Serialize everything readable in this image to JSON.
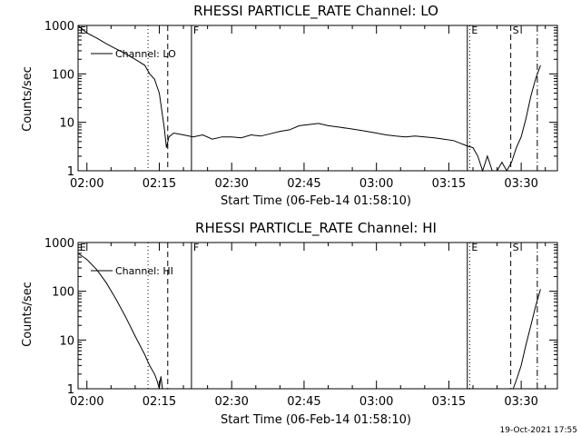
{
  "chart_data": [
    {
      "type": "line",
      "title": "RHESSI PARTICLE_RATE Channel: LO",
      "xlabel": "Start Time (06-Feb-14 01:58:10)",
      "ylabel": "Counts/sec",
      "yscale": "log",
      "ylim": [
        1,
        1000
      ],
      "y_ticks": [
        "1",
        "10",
        "100",
        "1000"
      ],
      "x_ticks": [
        "02:00",
        "02:15",
        "02:30",
        "02:45",
        "03:00",
        "03:15",
        "03:30"
      ],
      "legend": {
        "label": "Channel: LO",
        "placement": "top-left"
      },
      "series": [
        {
          "name": "Channel: LO",
          "x": [
            "01:58:10",
            "02:00",
            "02:02",
            "02:04",
            "02:06",
            "02:08",
            "02:10",
            "02:12",
            "02:13",
            "02:14",
            "02:15",
            "02:16",
            "02:16:30",
            "02:17",
            "02:18",
            "02:20",
            "02:22",
            "02:24",
            "02:26",
            "02:28",
            "02:30",
            "02:32",
            "02:34",
            "02:36",
            "02:38",
            "02:40",
            "02:42",
            "02:44",
            "02:46",
            "02:48",
            "02:50",
            "02:52",
            "02:54",
            "02:56",
            "02:58",
            "03:00",
            "03:02",
            "03:04",
            "03:06",
            "03:08",
            "03:10",
            "03:12",
            "03:14",
            "03:16",
            "03:18",
            "03:19",
            "03:20",
            "03:21",
            "03:22",
            "03:23",
            "03:24",
            "03:25",
            "03:26",
            "03:27",
            "03:28",
            "03:29",
            "03:30",
            "03:31",
            "03:32",
            "03:33",
            "03:34"
          ],
          "y": [
            1000,
            700,
            550,
            420,
            330,
            260,
            200,
            150,
            100,
            78,
            40,
            8,
            3,
            5,
            6,
            5.5,
            5,
            5.5,
            4.5,
            5,
            5,
            4.8,
            5.5,
            5.2,
            5.8,
            6.5,
            7,
            8.5,
            9,
            9.5,
            8.5,
            8,
            7.5,
            7,
            6.5,
            6,
            5.5,
            5.2,
            5,
            5.2,
            5,
            4.8,
            4.5,
            4.2,
            3.5,
            3.2,
            3.0,
            2.0,
            1.0,
            2.0,
            1.0,
            1.0,
            1.5,
            1.0,
            1.5,
            3,
            5,
            12,
            35,
            80,
            150
          ]
        }
      ],
      "vlines": [
        {
          "time": "01:58:10",
          "style": "dotted",
          "label": "E"
        },
        {
          "time": "02:12:40",
          "style": "dotted",
          "label": ""
        },
        {
          "time": "02:16:45",
          "style": "dashed",
          "label": ""
        },
        {
          "time": "02:21:40",
          "style": "solid",
          "label": "F"
        },
        {
          "time": "03:18:50",
          "style": "solid",
          "label": ""
        },
        {
          "time": "03:19:20",
          "style": "dotted",
          "label": "E"
        },
        {
          "time": "03:27:50",
          "style": "dashed",
          "label": "S"
        },
        {
          "time": "03:33:20",
          "style": "dashdot",
          "label": ""
        }
      ]
    },
    {
      "type": "line",
      "title": "RHESSI PARTICLE_RATE Channel: HI",
      "xlabel": "Start Time (06-Feb-14 01:58:10)",
      "ylabel": "Counts/sec",
      "yscale": "log",
      "ylim": [
        1,
        1000
      ],
      "y_ticks": [
        "1",
        "10",
        "100",
        "1000"
      ],
      "x_ticks": [
        "02:00",
        "02:15",
        "02:30",
        "02:45",
        "03:00",
        "03:15",
        "03:30"
      ],
      "legend": {
        "label": "Channel: HI",
        "placement": "top-left"
      },
      "series": [
        {
          "name": "Channel: HI",
          "x": [
            "01:58:10",
            "02:00",
            "02:02",
            "02:04",
            "02:06",
            "02:08",
            "02:10",
            "02:12",
            "02:13",
            "02:14",
            "02:14:30",
            "02:15",
            "02:15:20",
            "02:15:40",
            "03:28:20",
            "03:29",
            "03:30",
            "03:31",
            "03:32",
            "03:33",
            "03:34"
          ],
          "y": [
            600,
            450,
            280,
            150,
            70,
            30,
            12,
            5,
            3,
            2,
            1.5,
            1,
            1.8,
            1,
            1,
            1.5,
            3,
            8,
            20,
            50,
            110
          ]
        }
      ],
      "vlines": [
        {
          "time": "01:58:10",
          "style": "dotted",
          "label": "E"
        },
        {
          "time": "02:12:40",
          "style": "dotted",
          "label": ""
        },
        {
          "time": "02:16:45",
          "style": "dashed",
          "label": ""
        },
        {
          "time": "02:21:40",
          "style": "solid",
          "label": "F"
        },
        {
          "time": "03:18:50",
          "style": "solid",
          "label": ""
        },
        {
          "time": "03:19:20",
          "style": "dotted",
          "label": "E"
        },
        {
          "time": "03:27:50",
          "style": "dashed",
          "label": "S"
        },
        {
          "time": "03:33:20",
          "style": "dashdot",
          "label": ""
        }
      ]
    }
  ],
  "footer": {
    "timestamp": "19-Oct-2021 17:55"
  }
}
